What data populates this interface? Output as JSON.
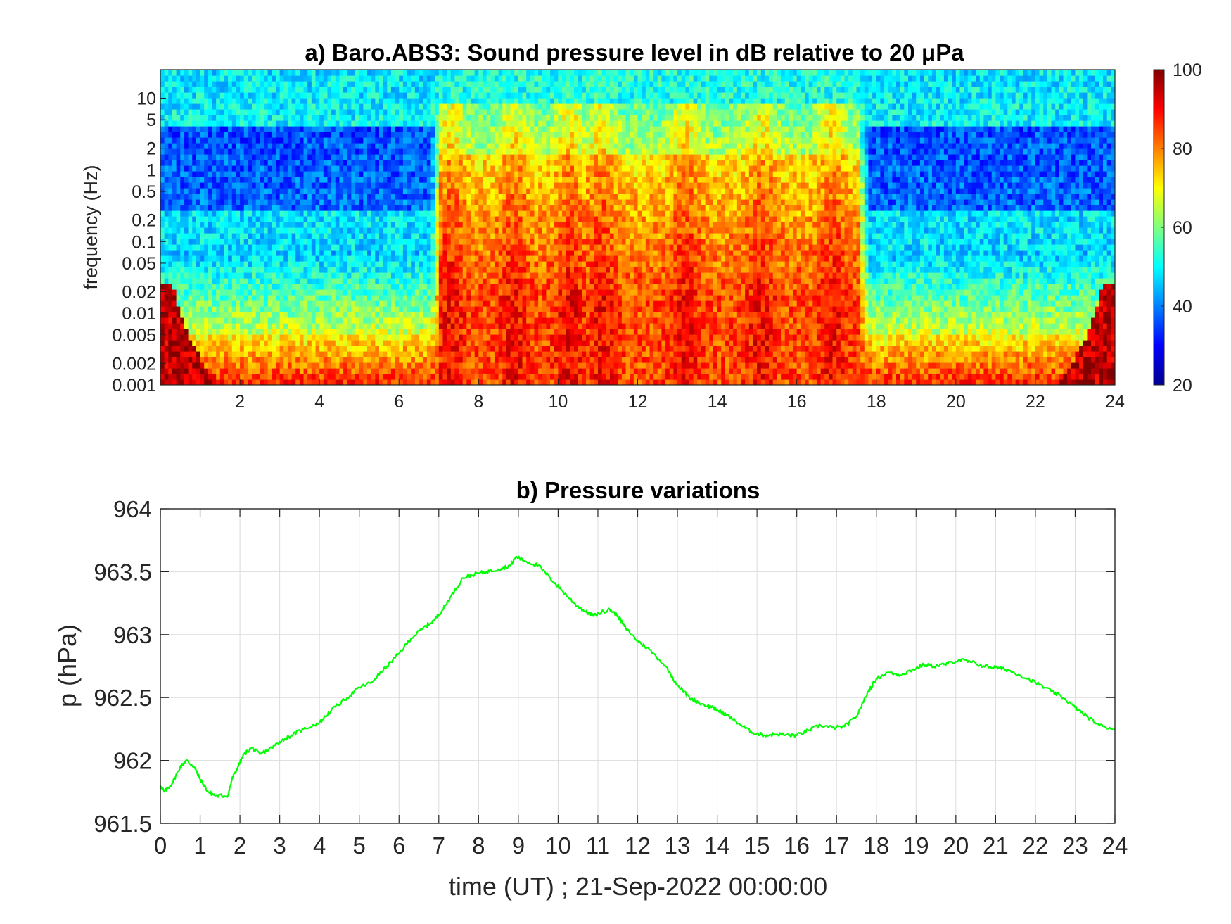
{
  "chart_data": [
    {
      "type": "heatmap",
      "title": "a) Baro.ABS3: Sound pressure level in dB relative to 20 μPa",
      "ylabel": "frequency (Hz)",
      "xlabel": "",
      "x_ticks": [
        2,
        4,
        6,
        8,
        10,
        12,
        14,
        16,
        18,
        20,
        22,
        24
      ],
      "xlim": [
        0,
        24
      ],
      "y_scale": "log",
      "ylim": [
        0.001,
        25
      ],
      "y_ticks": [
        0.001,
        0.002,
        0.005,
        0.01,
        0.02,
        0.05,
        0.1,
        0.2,
        0.5,
        1,
        2,
        5,
        10
      ],
      "y_tick_labels": [
        "0.001",
        "0.002",
        "0.005",
        "0.01",
        "0.02",
        "0.05",
        "0.1",
        "0.2",
        "0.5",
        "1",
        "2",
        "5",
        "10"
      ],
      "colormap": "jet",
      "colorbar": {
        "range": [
          20,
          100
        ],
        "ticks": [
          20,
          40,
          60,
          80,
          100
        ],
        "placement": "right"
      },
      "active_hours": [
        [
          6.8,
          17.8
        ]
      ],
      "peak_hours": [
        7.3,
        8.9,
        10.3,
        11.1,
        13.2,
        15.1,
        16.9
      ]
    },
    {
      "type": "line",
      "title": "b) Pressure variations",
      "ylabel": "p (hPa)",
      "xlabel": "time (UT) ; 21-Sep-2022 00:00:00",
      "xlim": [
        0,
        24
      ],
      "ylim": [
        961.5,
        964
      ],
      "x_ticks": [
        0,
        1,
        2,
        3,
        4,
        5,
        6,
        7,
        8,
        9,
        10,
        11,
        12,
        13,
        14,
        15,
        16,
        17,
        18,
        19,
        20,
        21,
        22,
        23,
        24
      ],
      "y_ticks": [
        961.5,
        962,
        962.5,
        963,
        963.5,
        964
      ],
      "y_tick_labels": [
        "961.5",
        "962",
        "962.5",
        "963",
        "963.5",
        "964"
      ],
      "grid": true,
      "series": [
        {
          "color": "#00ff00",
          "x": [
            0,
            0.1,
            0.3,
            0.5,
            0.65,
            0.85,
            1.0,
            1.2,
            1.4,
            1.7,
            1.8,
            1.95,
            2.1,
            2.3,
            2.5,
            2.8,
            3.0,
            3.3,
            3.6,
            4.0,
            4.3,
            4.7,
            5.0,
            5.3,
            5.7,
            6.0,
            6.3,
            6.6,
            6.9,
            7.1,
            7.3,
            7.6,
            7.9,
            8.2,
            8.5,
            8.8,
            8.95,
            9.2,
            9.5,
            9.8,
            10.1,
            10.4,
            10.7,
            10.9,
            11.1,
            11.3,
            11.5,
            11.7,
            12.0,
            12.3,
            12.7,
            13.0,
            13.3,
            13.6,
            13.9,
            14.0,
            14.3,
            14.6,
            14.9,
            15.2,
            15.5,
            15.8,
            16.0,
            16.3,
            16.6,
            16.9,
            17.2,
            17.5,
            17.8,
            18.0,
            18.3,
            18.6,
            18.9,
            19.2,
            19.5,
            19.8,
            20.1,
            20.4,
            20.7,
            21.0,
            21.3,
            21.6,
            22.0,
            22.4,
            22.7,
            23.0,
            23.3,
            23.6,
            24.0
          ],
          "y": [
            961.8,
            961.75,
            961.82,
            961.95,
            962.0,
            961.95,
            961.85,
            961.75,
            961.72,
            961.72,
            961.85,
            961.95,
            962.05,
            962.1,
            962.05,
            962.1,
            962.15,
            962.2,
            962.25,
            962.3,
            962.4,
            962.5,
            962.58,
            962.62,
            962.75,
            962.85,
            962.97,
            963.05,
            963.12,
            963.2,
            963.3,
            963.45,
            963.48,
            963.5,
            963.52,
            963.55,
            963.62,
            963.58,
            963.55,
            963.45,
            963.35,
            963.25,
            963.18,
            963.15,
            963.18,
            963.2,
            963.15,
            963.05,
            962.95,
            962.88,
            962.75,
            962.6,
            962.5,
            962.45,
            962.42,
            962.4,
            962.35,
            962.28,
            962.22,
            962.2,
            962.21,
            962.2,
            962.2,
            962.24,
            962.28,
            962.26,
            962.27,
            962.35,
            962.55,
            962.65,
            962.7,
            962.68,
            962.72,
            962.76,
            962.75,
            962.77,
            962.8,
            962.78,
            962.75,
            962.74,
            962.72,
            962.68,
            962.62,
            962.55,
            962.5,
            962.42,
            962.35,
            962.28,
            962.25
          ]
        }
      ]
    }
  ]
}
